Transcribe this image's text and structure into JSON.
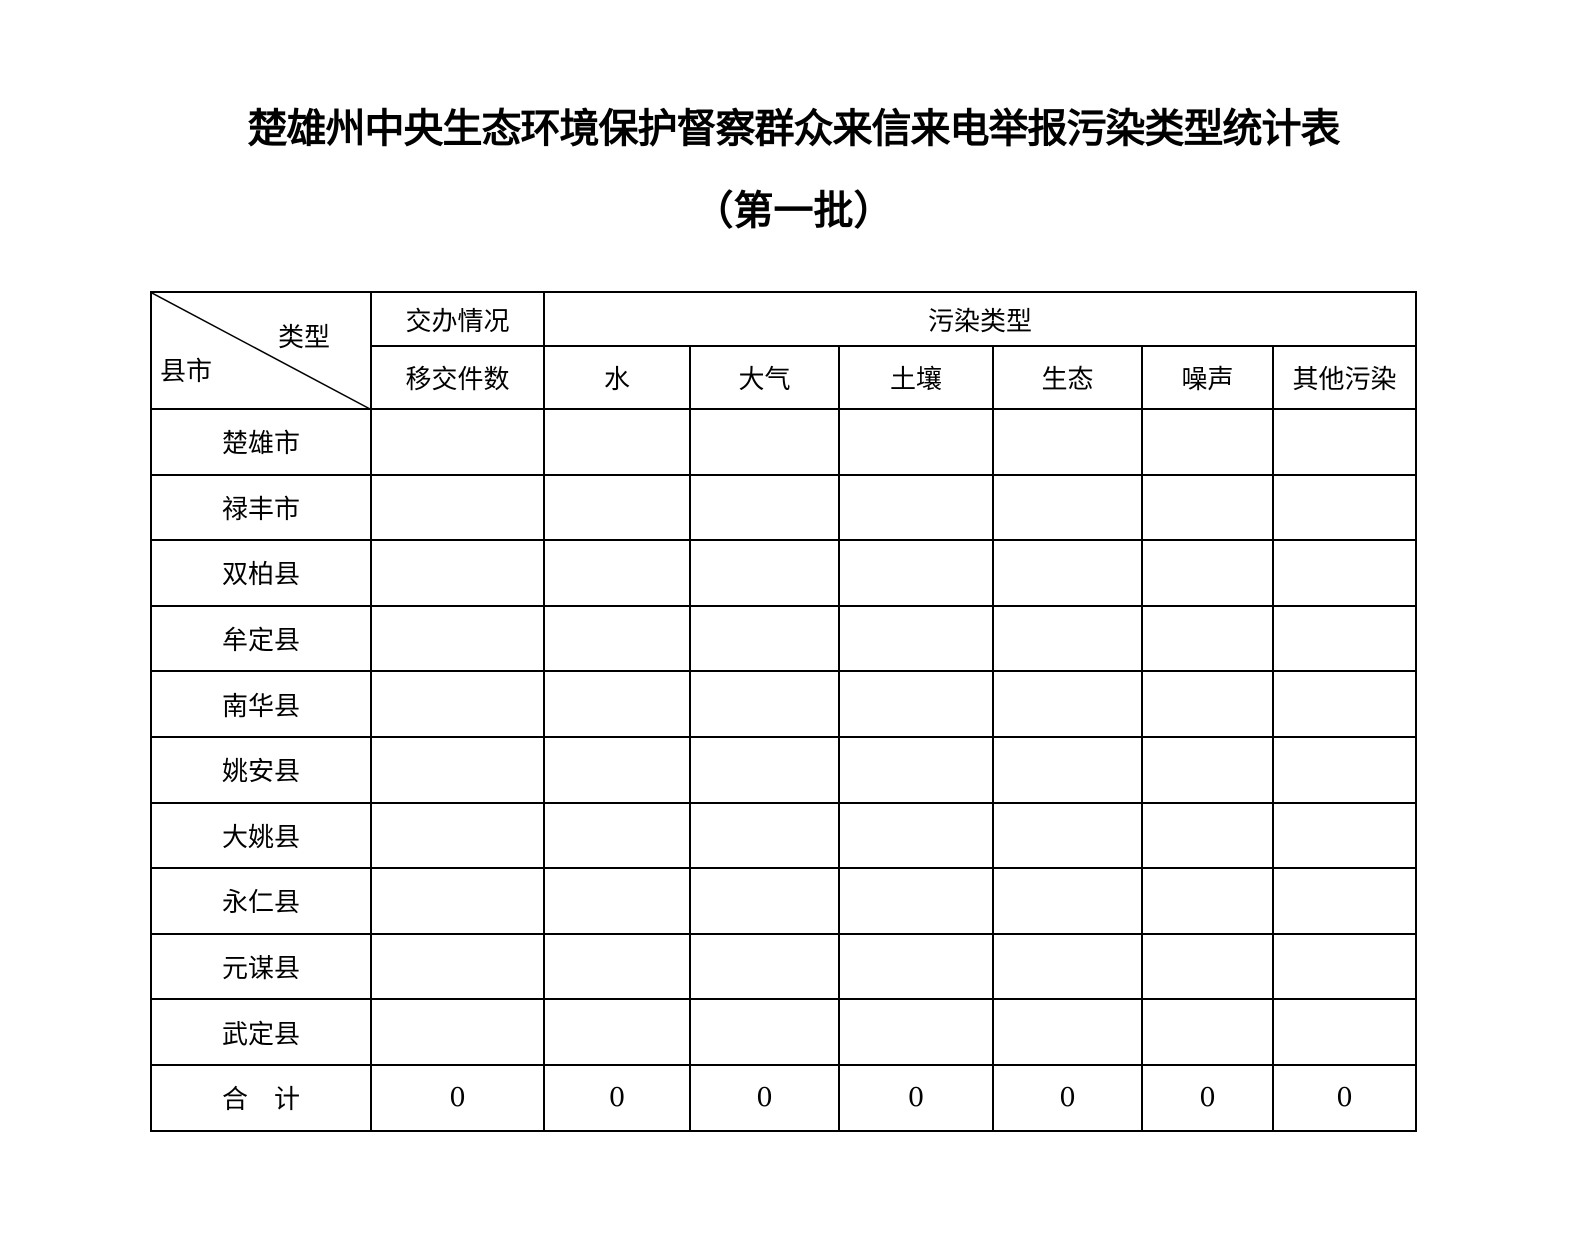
{
  "title": "楚雄州中央生态环境保护督察群众来信来电举报污染类型统计表",
  "subtitle": "（第一批）",
  "table": {
    "corner_top": "类型",
    "corner_bottom": "县市",
    "group_assign": "交办情况",
    "group_pollution": "污染类型",
    "columns": [
      "移交件数",
      "水",
      "大气",
      "土壤",
      "生态",
      "噪声",
      "其他污染"
    ],
    "rows": [
      {
        "name": "楚雄市",
        "values": [
          "",
          "",
          "",
          "",
          "",
          "",
          ""
        ]
      },
      {
        "name": "禄丰市",
        "values": [
          "",
          "",
          "",
          "",
          "",
          "",
          ""
        ]
      },
      {
        "name": "双柏县",
        "values": [
          "",
          "",
          "",
          "",
          "",
          "",
          ""
        ]
      },
      {
        "name": "牟定县",
        "values": [
          "",
          "",
          "",
          "",
          "",
          "",
          ""
        ]
      },
      {
        "name": "南华县",
        "values": [
          "",
          "",
          "",
          "",
          "",
          "",
          ""
        ]
      },
      {
        "name": "姚安县",
        "values": [
          "",
          "",
          "",
          "",
          "",
          "",
          ""
        ]
      },
      {
        "name": "大姚县",
        "values": [
          "",
          "",
          "",
          "",
          "",
          "",
          ""
        ]
      },
      {
        "name": "永仁县",
        "values": [
          "",
          "",
          "",
          "",
          "",
          "",
          ""
        ]
      },
      {
        "name": "元谋县",
        "values": [
          "",
          "",
          "",
          "",
          "",
          "",
          ""
        ]
      },
      {
        "name": "武定县",
        "values": [
          "",
          "",
          "",
          "",
          "",
          "",
          ""
        ]
      }
    ],
    "total": {
      "name": "合　计",
      "values": [
        "0",
        "0",
        "0",
        "0",
        "0",
        "0",
        "0"
      ]
    }
  }
}
